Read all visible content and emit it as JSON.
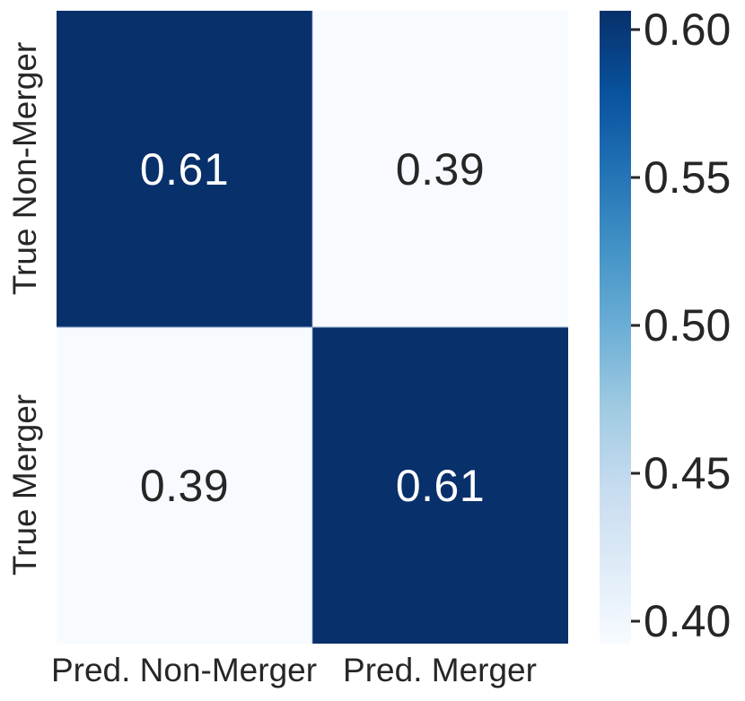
{
  "chart_data": {
    "type": "heatmap",
    "subtype": "confusion-matrix",
    "x_categories": [
      "Pred. Non-Merger",
      "Pred. Merger"
    ],
    "y_categories": [
      "True Non-Merger",
      "True Merger"
    ],
    "values": [
      [
        0.61,
        0.39
      ],
      [
        0.39,
        0.61
      ]
    ],
    "cell_labels": [
      [
        "0.61",
        "0.39"
      ],
      [
        "0.39",
        "0.61"
      ]
    ],
    "colormap": "Blues",
    "vmin": 0.39,
    "vmax": 0.61,
    "grid": "off",
    "colors": {
      "cell_high": "#08306b",
      "cell_low": "#f7fbff",
      "annot_on_dark": "#ffffff",
      "annot_on_light": "#262626",
      "tick_text": "#262626",
      "background": "#ffffff"
    },
    "colorbar": {
      "position": "right",
      "ticks": [
        {
          "label": "0.60"
        },
        {
          "label": "0.55"
        },
        {
          "label": "0.50"
        },
        {
          "label": "0.45"
        },
        {
          "label": "0.40"
        }
      ],
      "gradient_stops": [
        "#f7fbff",
        "#deebf7",
        "#c6dbef",
        "#9ecae1",
        "#6baed6",
        "#4292c6",
        "#2171b5",
        "#08519c",
        "#08306b"
      ]
    }
  }
}
